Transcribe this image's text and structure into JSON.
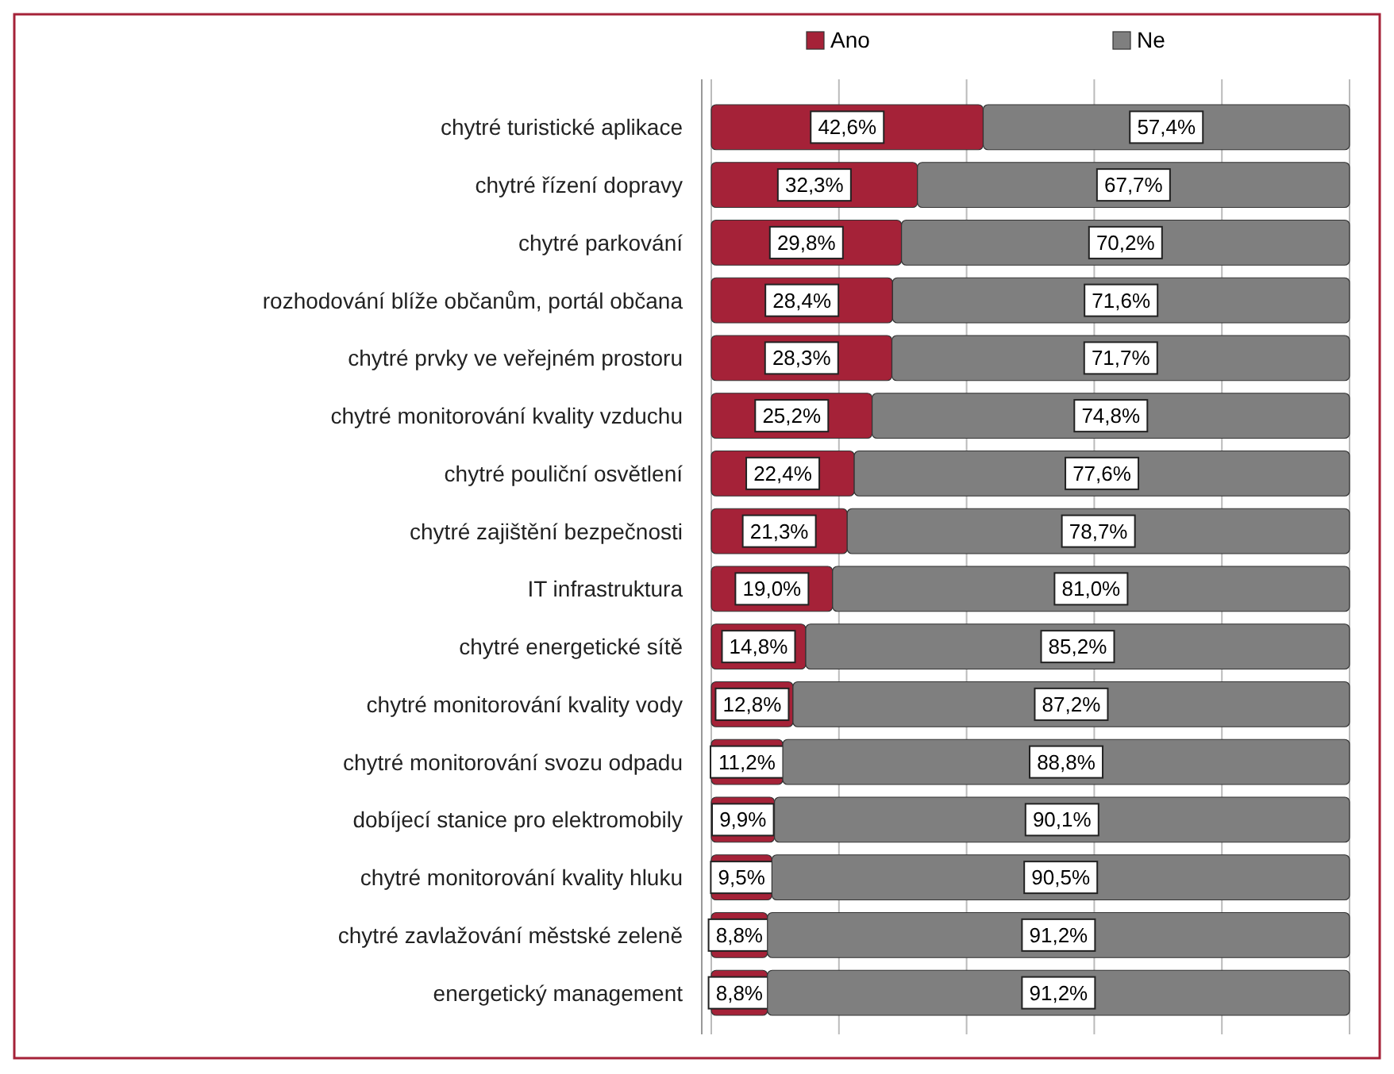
{
  "chart_data": {
    "type": "bar",
    "orientation": "horizontal",
    "stacked": true,
    "categories": [
      "chytré turistické aplikace",
      "chytré řízení dopravy ",
      "chytré parkování",
      "rozhodování blíže občanům, portál občana",
      "chytré prvky ve veřejném prostoru",
      "chytré monitorování kvality vzduchu",
      "chytré pouliční osvětlení",
      "chytré zajištění bezpečnosti",
      "IT infrastruktura",
      "chytré energetické sítě",
      "chytré monitorování kvality vody",
      "chytré monitorování svozu odpadu",
      "dobíjecí stanice pro elektromobily",
      "chytré monitorování kvality hluku",
      "chytré zavlažování městské zeleně",
      "energetický management"
    ],
    "series": [
      {
        "name": "Ano",
        "color": "#a52238",
        "values": [
          42.6,
          32.3,
          29.8,
          28.4,
          28.3,
          25.2,
          22.4,
          21.3,
          19.0,
          14.8,
          12.8,
          11.2,
          9.9,
          9.5,
          8.8,
          8.8
        ],
        "value_labels": [
          "42,6%",
          "32,3%",
          "29,8%",
          "28,4%",
          "28,3%",
          "25,2%",
          "22,4%",
          "21,3%",
          "19,0%",
          "14,8%",
          "12,8%",
          "11,2%",
          "9,9%",
          "9,5%",
          "8,8%",
          "8,8%"
        ]
      },
      {
        "name": "Ne",
        "color": "#7f7f7f",
        "values": [
          57.4,
          67.7,
          70.2,
          71.6,
          71.7,
          74.8,
          77.6,
          78.7,
          81.0,
          85.2,
          87.2,
          88.8,
          90.1,
          90.5,
          91.2,
          91.2
        ],
        "value_labels": [
          "57,4%",
          "67,7%",
          "70,2%",
          "71,6%",
          "71,7%",
          "74,8%",
          "77,6%",
          "78,7%",
          "81,0%",
          "85,2%",
          "87,2%",
          "88,8%",
          "90,1%",
          "90,5%",
          "91,2%",
          "91,2%"
        ]
      }
    ],
    "xlim": [
      0,
      100
    ],
    "xticks": [
      {
        "value": 0,
        "label": null
      },
      {
        "value": 20,
        "label": null
      },
      {
        "value": 40,
        "label": null
      },
      {
        "value": 60,
        "label": null
      },
      {
        "value": 80,
        "label": null
      },
      {
        "value": 100,
        "label": null
      }
    ],
    "tick_labels": "y",
    "grid": "x",
    "legend": "top"
  }
}
